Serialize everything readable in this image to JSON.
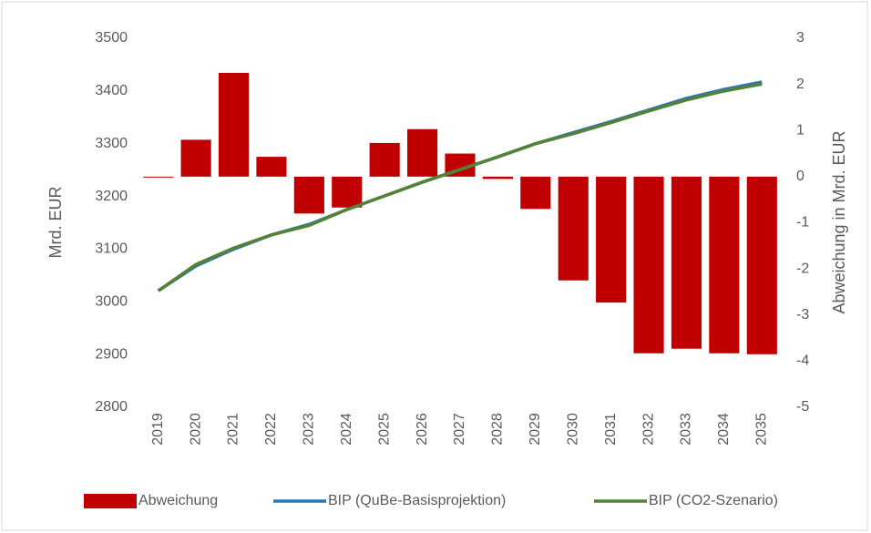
{
  "chart_data": {
    "type": "bar_line",
    "categories": [
      "2019",
      "2020",
      "2021",
      "2022",
      "2023",
      "2024",
      "2025",
      "2026",
      "2027",
      "2028",
      "2029",
      "2030",
      "2031",
      "2032",
      "2033",
      "2034",
      "2035"
    ],
    "ylabel": "Mrd. EUR",
    "y2label": "Abweichung in Mrd. EUR",
    "ylim": [
      2800,
      3500
    ],
    "yticks": [
      2800,
      2900,
      3000,
      3100,
      3200,
      3300,
      3400,
      3500
    ],
    "y2lim": [
      -5,
      3
    ],
    "y2ticks": [
      -5,
      -4,
      -3,
      -2,
      -1,
      0,
      1,
      2,
      3
    ],
    "series": [
      {
        "name": "Abweichung",
        "type": "bar",
        "axis": "y2",
        "color": "#c00000",
        "values": [
          0,
          0.8,
          2.25,
          0.43,
          -0.8,
          -0.67,
          0.73,
          1.03,
          0.5,
          -0.05,
          -0.7,
          -2.25,
          -2.73,
          -3.83,
          -3.73,
          -3.83,
          -3.85
        ]
      },
      {
        "name": "BIP (QuBe-Basisprojektion)",
        "type": "line",
        "color": "#2e75b6",
        "values": [
          3021,
          3068,
          3100,
          3127,
          3147,
          3175,
          3201,
          3227,
          3251,
          3275,
          3300,
          3321,
          3342,
          3364,
          3386,
          3403,
          3417
        ]
      },
      {
        "name": "BIP (CO2-Szenario)",
        "type": "line",
        "color": "#548235",
        "values": [
          3021,
          3071,
          3102,
          3127,
          3145,
          3175,
          3201,
          3227,
          3251,
          3275,
          3300,
          3319,
          3340,
          3362,
          3383,
          3400,
          3413
        ]
      }
    ]
  }
}
